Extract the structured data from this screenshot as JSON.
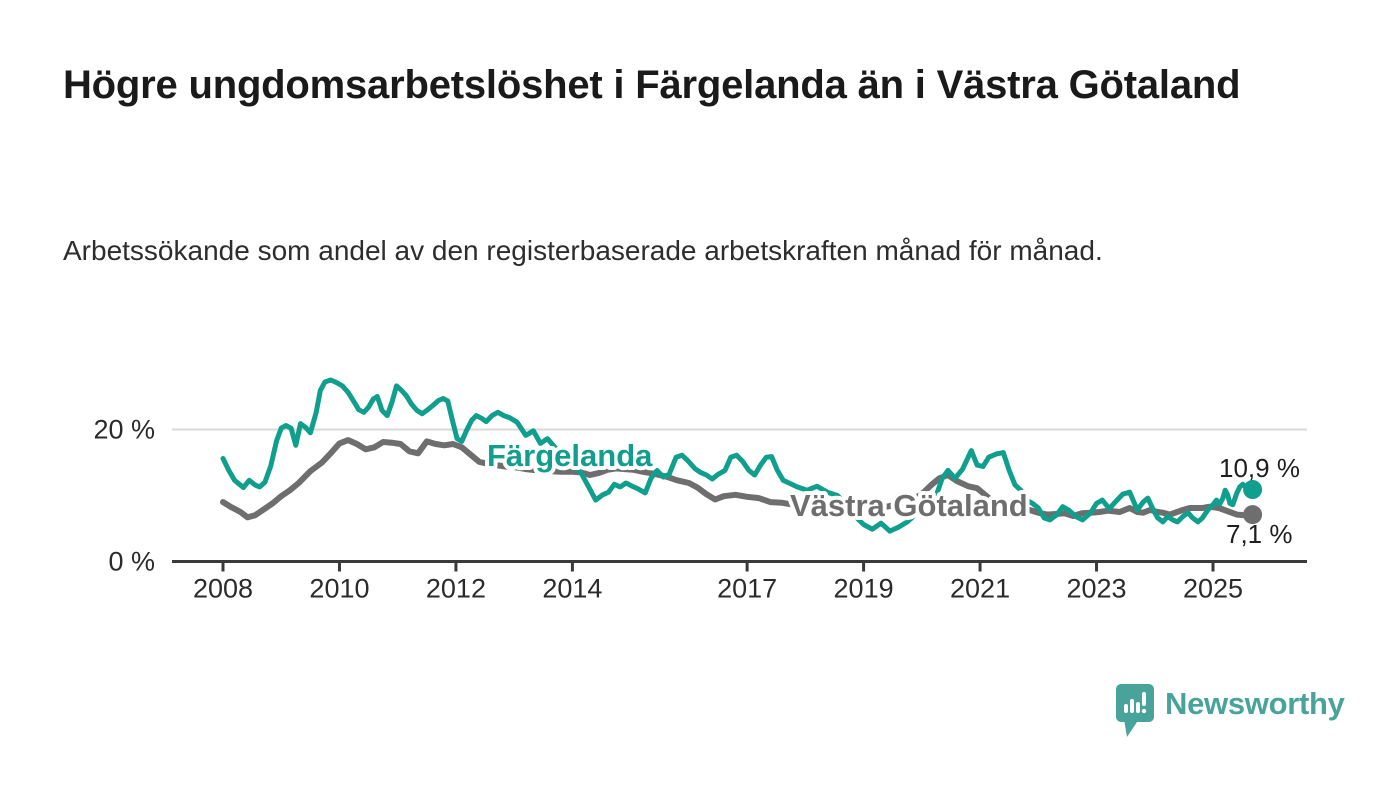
{
  "header": {
    "title": "Högre ungdomsarbetslöshet i Färgelanda än i Västra Götaland",
    "subtitle": "Arbetssökande som andel av den registerbaserade arbetskraften månad för månad."
  },
  "footer": {
    "brand": "Newsworthy"
  },
  "chart_data": {
    "type": "line",
    "title": "Högre ungdomsarbetslöshet i Färgelanda än i Västra Götaland",
    "ylabel": "",
    "xlabel": "",
    "unit": "%",
    "xlim": [
      2008,
      2025.75
    ],
    "ylim": [
      0,
      28
    ],
    "grid": "single-gridline-at-20",
    "legend_position": "inline-line-labels",
    "x_ticks": [
      2008,
      2010,
      2012,
      2014,
      2017,
      2019,
      2021,
      2023,
      2025
    ],
    "y_ticks": [
      {
        "value": 0,
        "label": "0 %"
      },
      {
        "value": 20,
        "label": "20 %"
      }
    ],
    "colors": {
      "farjelanda": "#109e8d",
      "vastra_gotaland": "#6e6e6e",
      "axis": "#3a3a3a",
      "tick_label": "#2b2b2b",
      "gridline": "#d9d9d9",
      "end_label": "#1f1f1f",
      "halo": "#ffffff"
    },
    "series": [
      {
        "name": "Västra Götaland",
        "color": "#6e6e6e",
        "end_value": 7.1,
        "end_label": "7,1 %",
        "points": [
          [
            2008.0,
            9.0
          ],
          [
            2008.15,
            8.2
          ],
          [
            2008.3,
            7.5
          ],
          [
            2008.42,
            6.7
          ],
          [
            2008.55,
            7.0
          ],
          [
            2008.7,
            7.9
          ],
          [
            2008.85,
            8.8
          ],
          [
            2009.0,
            9.9
          ],
          [
            2009.15,
            10.8
          ],
          [
            2009.3,
            11.9
          ],
          [
            2009.5,
            13.7
          ],
          [
            2009.7,
            15.0
          ],
          [
            2009.85,
            16.4
          ],
          [
            2010.0,
            17.9
          ],
          [
            2010.15,
            18.4
          ],
          [
            2010.3,
            17.8
          ],
          [
            2010.45,
            17.0
          ],
          [
            2010.6,
            17.3
          ],
          [
            2010.75,
            18.1
          ],
          [
            2010.9,
            18.0
          ],
          [
            2011.05,
            17.8
          ],
          [
            2011.2,
            16.7
          ],
          [
            2011.35,
            16.4
          ],
          [
            2011.5,
            18.2
          ],
          [
            2011.65,
            17.8
          ],
          [
            2011.8,
            17.6
          ],
          [
            2011.95,
            17.8
          ],
          [
            2012.1,
            17.3
          ],
          [
            2012.25,
            16.2
          ],
          [
            2012.4,
            15.1
          ],
          [
            2012.55,
            14.8
          ],
          [
            2012.7,
            14.6
          ],
          [
            2012.85,
            14.4
          ],
          [
            2013.0,
            14.3
          ],
          [
            2013.2,
            14.0
          ],
          [
            2013.4,
            13.8
          ],
          [
            2013.6,
            13.7
          ],
          [
            2013.8,
            13.6
          ],
          [
            2014.0,
            13.6
          ],
          [
            2014.15,
            13.5
          ],
          [
            2014.3,
            13.1
          ],
          [
            2014.45,
            13.4
          ],
          [
            2014.6,
            13.9
          ],
          [
            2014.75,
            14.1
          ],
          [
            2014.9,
            14.0
          ],
          [
            2015.05,
            13.9
          ],
          [
            2015.2,
            13.6
          ],
          [
            2015.4,
            13.3
          ],
          [
            2015.6,
            12.9
          ],
          [
            2015.8,
            12.3
          ],
          [
            2016.0,
            11.9
          ],
          [
            2016.15,
            11.2
          ],
          [
            2016.3,
            10.2
          ],
          [
            2016.45,
            9.4
          ],
          [
            2016.6,
            9.9
          ],
          [
            2016.8,
            10.1
          ],
          [
            2017.0,
            9.8
          ],
          [
            2017.2,
            9.6
          ],
          [
            2017.4,
            9.0
          ],
          [
            2017.6,
            8.9
          ],
          [
            2017.8,
            8.6
          ],
          [
            2018.0,
            8.1
          ],
          [
            2018.2,
            7.8
          ],
          [
            2018.4,
            8.3
          ],
          [
            2018.6,
            8.6
          ],
          [
            2018.8,
            8.4
          ],
          [
            2019.0,
            8.2
          ],
          [
            2019.2,
            8.1
          ],
          [
            2019.4,
            8.3
          ],
          [
            2019.6,
            8.7
          ],
          [
            2019.8,
            9.2
          ],
          [
            2020.0,
            10.2
          ],
          [
            2020.15,
            11.5
          ],
          [
            2020.3,
            12.6
          ],
          [
            2020.45,
            13.1
          ],
          [
            2020.6,
            12.2
          ],
          [
            2020.8,
            11.4
          ],
          [
            2020.95,
            11.1
          ],
          [
            2021.1,
            10.0
          ],
          [
            2021.25,
            8.9
          ],
          [
            2021.4,
            8.4
          ],
          [
            2021.55,
            8.0
          ],
          [
            2021.7,
            7.9
          ],
          [
            2021.85,
            7.8
          ],
          [
            2022.0,
            7.4
          ],
          [
            2022.15,
            7.1
          ],
          [
            2022.3,
            7.2
          ],
          [
            2022.45,
            7.3
          ],
          [
            2022.6,
            6.9
          ],
          [
            2022.75,
            7.3
          ],
          [
            2022.9,
            7.4
          ],
          [
            2023.05,
            7.5
          ],
          [
            2023.2,
            7.7
          ],
          [
            2023.4,
            7.5
          ],
          [
            2023.57,
            8.1
          ],
          [
            2023.7,
            7.5
          ],
          [
            2023.8,
            7.4
          ],
          [
            2023.92,
            7.8
          ],
          [
            2024.05,
            7.5
          ],
          [
            2024.14,
            7.4
          ],
          [
            2024.26,
            7.1
          ],
          [
            2024.48,
            7.8
          ],
          [
            2024.6,
            8.1
          ],
          [
            2024.82,
            8.1
          ],
          [
            2024.94,
            8.3
          ],
          [
            2025.1,
            8.1
          ],
          [
            2025.29,
            7.5
          ],
          [
            2025.41,
            7.1
          ],
          [
            2025.55,
            7.0
          ],
          [
            2025.68,
            7.1
          ]
        ]
      },
      {
        "name": "Färgelanda",
        "color": "#109e8d",
        "end_value": 10.9,
        "end_label": "10,9 %",
        "points": [
          [
            2008.0,
            15.6
          ],
          [
            2008.1,
            13.8
          ],
          [
            2008.2,
            12.3
          ],
          [
            2008.35,
            11.2
          ],
          [
            2008.45,
            12.3
          ],
          [
            2008.55,
            11.6
          ],
          [
            2008.63,
            11.3
          ],
          [
            2008.72,
            12.0
          ],
          [
            2008.82,
            14.5
          ],
          [
            2008.92,
            18.3
          ],
          [
            2009.0,
            20.2
          ],
          [
            2009.08,
            20.6
          ],
          [
            2009.17,
            20.2
          ],
          [
            2009.25,
            17.6
          ],
          [
            2009.33,
            20.9
          ],
          [
            2009.42,
            20.3
          ],
          [
            2009.5,
            19.5
          ],
          [
            2009.6,
            22.6
          ],
          [
            2009.67,
            25.9
          ],
          [
            2009.75,
            27.2
          ],
          [
            2009.85,
            27.5
          ],
          [
            2009.95,
            27.1
          ],
          [
            2010.05,
            26.6
          ],
          [
            2010.15,
            25.6
          ],
          [
            2010.25,
            24.2
          ],
          [
            2010.33,
            23.0
          ],
          [
            2010.42,
            22.6
          ],
          [
            2010.5,
            23.4
          ],
          [
            2010.58,
            24.6
          ],
          [
            2010.65,
            25.0
          ],
          [
            2010.73,
            22.9
          ],
          [
            2010.82,
            22.1
          ],
          [
            2010.9,
            24.1
          ],
          [
            2010.98,
            26.6
          ],
          [
            2011.07,
            25.9
          ],
          [
            2011.15,
            25.1
          ],
          [
            2011.24,
            23.8
          ],
          [
            2011.33,
            22.9
          ],
          [
            2011.42,
            22.4
          ],
          [
            2011.5,
            22.9
          ],
          [
            2011.6,
            23.6
          ],
          [
            2011.7,
            24.4
          ],
          [
            2011.78,
            24.7
          ],
          [
            2011.86,
            24.3
          ],
          [
            2011.94,
            21.4
          ],
          [
            2012.02,
            18.6
          ],
          [
            2012.1,
            18.2
          ],
          [
            2012.18,
            19.8
          ],
          [
            2012.27,
            21.4
          ],
          [
            2012.35,
            22.1
          ],
          [
            2012.44,
            21.7
          ],
          [
            2012.52,
            21.2
          ],
          [
            2012.62,
            22.1
          ],
          [
            2012.72,
            22.6
          ],
          [
            2012.82,
            22.1
          ],
          [
            2012.92,
            21.8
          ],
          [
            2013.05,
            21.1
          ],
          [
            2013.2,
            19.1
          ],
          [
            2013.33,
            19.8
          ],
          [
            2013.45,
            17.9
          ],
          [
            2013.57,
            18.6
          ],
          [
            2013.7,
            17.3
          ],
          [
            2013.85,
            15.9
          ],
          [
            2014.0,
            14.6
          ],
          [
            2014.15,
            13.4
          ],
          [
            2014.28,
            11.3
          ],
          [
            2014.4,
            9.3
          ],
          [
            2014.52,
            10.1
          ],
          [
            2014.62,
            10.5
          ],
          [
            2014.72,
            11.7
          ],
          [
            2014.82,
            11.3
          ],
          [
            2014.92,
            11.9
          ],
          [
            2015.03,
            11.4
          ],
          [
            2015.13,
            11.0
          ],
          [
            2015.25,
            10.4
          ],
          [
            2015.35,
            12.6
          ],
          [
            2015.45,
            13.8
          ],
          [
            2015.56,
            12.8
          ],
          [
            2015.66,
            13.2
          ],
          [
            2015.78,
            15.8
          ],
          [
            2015.88,
            16.1
          ],
          [
            2015.98,
            15.3
          ],
          [
            2016.1,
            14.1
          ],
          [
            2016.2,
            13.5
          ],
          [
            2016.3,
            13.1
          ],
          [
            2016.4,
            12.5
          ],
          [
            2016.5,
            13.2
          ],
          [
            2016.62,
            13.8
          ],
          [
            2016.72,
            15.8
          ],
          [
            2016.82,
            16.1
          ],
          [
            2016.92,
            15.2
          ],
          [
            2017.03,
            13.8
          ],
          [
            2017.13,
            13.1
          ],
          [
            2017.23,
            14.6
          ],
          [
            2017.33,
            15.8
          ],
          [
            2017.42,
            15.9
          ],
          [
            2017.52,
            13.8
          ],
          [
            2017.62,
            12.3
          ],
          [
            2017.72,
            11.9
          ],
          [
            2017.86,
            11.3
          ],
          [
            2018.03,
            10.8
          ],
          [
            2018.2,
            11.4
          ],
          [
            2018.38,
            10.5
          ],
          [
            2018.55,
            10.0
          ],
          [
            2018.7,
            8.6
          ],
          [
            2018.85,
            6.9
          ],
          [
            2019.0,
            5.6
          ],
          [
            2019.15,
            4.9
          ],
          [
            2019.3,
            5.8
          ],
          [
            2019.45,
            4.6
          ],
          [
            2019.6,
            5.2
          ],
          [
            2019.75,
            6.0
          ],
          [
            2019.9,
            7.2
          ],
          [
            2020.05,
            8.3
          ],
          [
            2020.2,
            8.8
          ],
          [
            2020.35,
            12.6
          ],
          [
            2020.45,
            13.8
          ],
          [
            2020.57,
            12.6
          ],
          [
            2020.7,
            14.0
          ],
          [
            2020.85,
            16.8
          ],
          [
            2020.95,
            14.6
          ],
          [
            2021.05,
            14.4
          ],
          [
            2021.15,
            15.8
          ],
          [
            2021.28,
            16.3
          ],
          [
            2021.4,
            16.5
          ],
          [
            2021.5,
            13.8
          ],
          [
            2021.6,
            11.6
          ],
          [
            2021.7,
            10.8
          ],
          [
            2021.8,
            9.3
          ],
          [
            2021.9,
            8.8
          ],
          [
            2022.0,
            8.1
          ],
          [
            2022.1,
            6.6
          ],
          [
            2022.2,
            6.3
          ],
          [
            2022.32,
            7.1
          ],
          [
            2022.42,
            8.3
          ],
          [
            2022.52,
            7.8
          ],
          [
            2022.65,
            6.8
          ],
          [
            2022.76,
            6.3
          ],
          [
            2022.9,
            7.4
          ],
          [
            2023.0,
            8.8
          ],
          [
            2023.1,
            9.3
          ],
          [
            2023.22,
            8.0
          ],
          [
            2023.32,
            9.0
          ],
          [
            2023.45,
            10.2
          ],
          [
            2023.57,
            10.5
          ],
          [
            2023.7,
            7.8
          ],
          [
            2023.8,
            9.0
          ],
          [
            2023.88,
            9.6
          ],
          [
            2023.95,
            8.3
          ],
          [
            2024.0,
            7.4
          ],
          [
            2024.05,
            6.6
          ],
          [
            2024.14,
            6.0
          ],
          [
            2024.22,
            6.8
          ],
          [
            2024.31,
            6.3
          ],
          [
            2024.39,
            6.0
          ],
          [
            2024.48,
            6.8
          ],
          [
            2024.57,
            7.4
          ],
          [
            2024.65,
            6.6
          ],
          [
            2024.74,
            6.0
          ],
          [
            2024.82,
            6.6
          ],
          [
            2024.91,
            7.8
          ],
          [
            2025.0,
            8.6
          ],
          [
            2025.06,
            9.3
          ],
          [
            2025.11,
            8.6
          ],
          [
            2025.17,
            9.6
          ],
          [
            2025.21,
            10.8
          ],
          [
            2025.25,
            10.1
          ],
          [
            2025.29,
            8.8
          ],
          [
            2025.34,
            8.6
          ],
          [
            2025.41,
            10.4
          ],
          [
            2025.46,
            11.3
          ],
          [
            2025.51,
            11.7
          ],
          [
            2025.58,
            11.1
          ],
          [
            2025.68,
            10.9
          ]
        ]
      }
    ]
  }
}
